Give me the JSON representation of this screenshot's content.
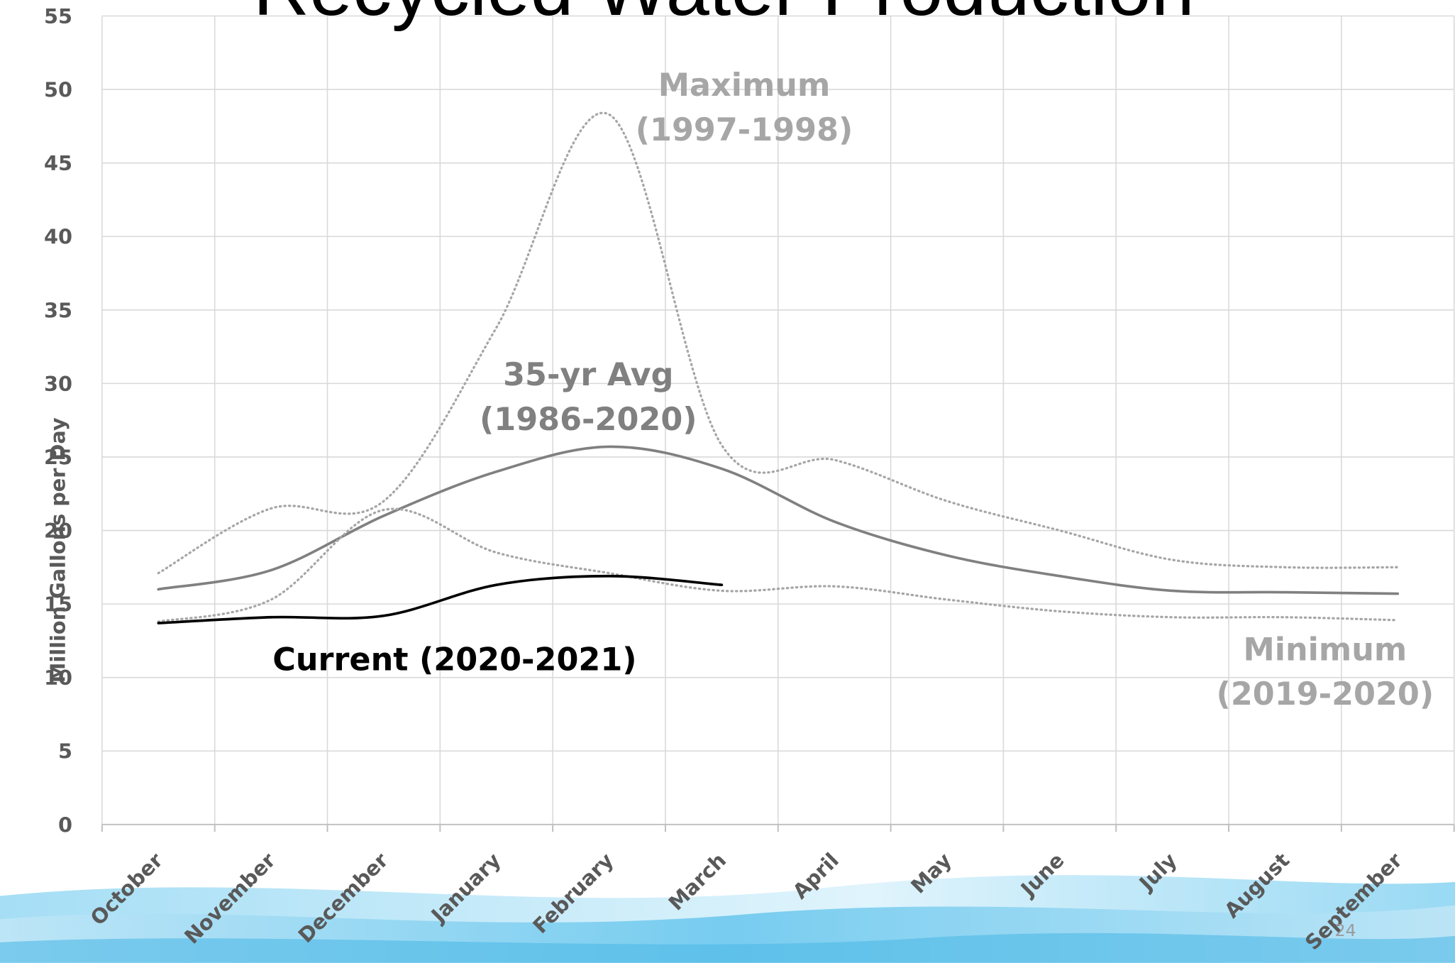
{
  "chart_data": {
    "type": "line",
    "title": "Recycled Water Production",
    "y_axis_label": "Million Gallons per Day",
    "slide_number": "24",
    "categories": [
      "October",
      "November",
      "December",
      "January",
      "February",
      "March",
      "April",
      "May",
      "June",
      "July",
      "August",
      "September"
    ],
    "ylim": [
      0,
      55
    ],
    "yticks": [
      0,
      5,
      10,
      15,
      20,
      25,
      30,
      35,
      40,
      45,
      50,
      55
    ],
    "grid": true,
    "series": [
      {
        "color": "#a6a6a6",
        "dashed": true,
        "values": [
          17.1,
          21.5,
          22.0,
          33.8,
          48.3,
          25.8,
          24.8,
          22.0,
          20.0,
          18.0,
          17.5,
          17.5
        ]
      },
      {
        "color": "#808080",
        "dashed": false,
        "values": [
          16.0,
          17.3,
          21.0,
          24.0,
          25.7,
          24.2,
          20.6,
          18.3,
          16.9,
          15.9,
          15.8,
          15.7
        ]
      },
      {
        "color": "#a6a6a6",
        "dashed": true,
        "values": [
          13.8,
          15.3,
          21.4,
          18.5,
          17.1,
          15.9,
          16.2,
          15.3,
          14.5,
          14.1,
          14.1,
          13.9
        ]
      },
      {
        "color": "#000000",
        "dashed": false,
        "values": [
          13.7,
          14.1,
          14.2,
          16.3,
          16.9,
          16.3,
          null,
          null,
          null,
          null,
          null,
          null
        ]
      }
    ],
    "annotations": [
      {
        "lines": [
          "Maximum",
          "(1997-1998)"
        ],
        "color": "#a6a6a6"
      },
      {
        "lines": [
          "35-yr Avg",
          "(1986-2020)"
        ],
        "color": "#808080"
      },
      {
        "lines": [
          "Minimum",
          "(2019-2020)"
        ],
        "color": "#a6a6a6"
      },
      {
        "lines": [
          "Current (2020-2021)"
        ],
        "color": "#000000"
      }
    ]
  }
}
